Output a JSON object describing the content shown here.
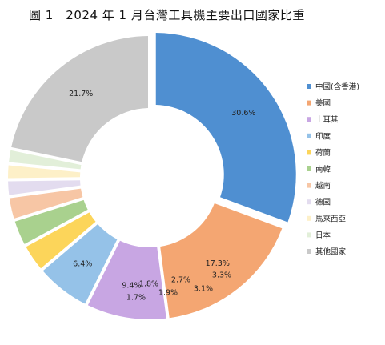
{
  "chart_data": {
    "type": "pie",
    "title": "圖 1　2024 年 1 月台灣工具機主要出口國家比重",
    "legend_position": "right",
    "slices": [
      {
        "label": "中國(含香港)",
        "value": 30.6,
        "display": "30.6%",
        "color": "#4f8fd1"
      },
      {
        "label": "美國",
        "value": 17.3,
        "display": "17.3%",
        "color": "#f4a672"
      },
      {
        "label": "土耳其",
        "value": 9.4,
        "display": "9.4%",
        "color": "#c8a6e3"
      },
      {
        "label": "印度",
        "value": 6.4,
        "display": "6.4%",
        "color": "#95c2e8"
      },
      {
        "label": "荷蘭",
        "value": 3.3,
        "display": "3.3%",
        "color": "#fcd55a"
      },
      {
        "label": "南韓",
        "value": 3.1,
        "display": "3.1%",
        "color": "#a9d18e"
      },
      {
        "label": "越南",
        "value": 2.7,
        "display": "2.7%",
        "color": "#f7c6a5"
      },
      {
        "label": "德國",
        "value": 1.9,
        "display": "1.9%",
        "color": "#e3dcef"
      },
      {
        "label": "馬來西亞",
        "value": 1.8,
        "display": "1.8%",
        "color": "#fdf0c8"
      },
      {
        "label": "日本",
        "value": 1.7,
        "display": "1.7%",
        "color": "#e2efd9"
      },
      {
        "label": "其他國家",
        "value": 21.7,
        "display": "21.7%",
        "color": "#c9c9c9"
      }
    ]
  }
}
